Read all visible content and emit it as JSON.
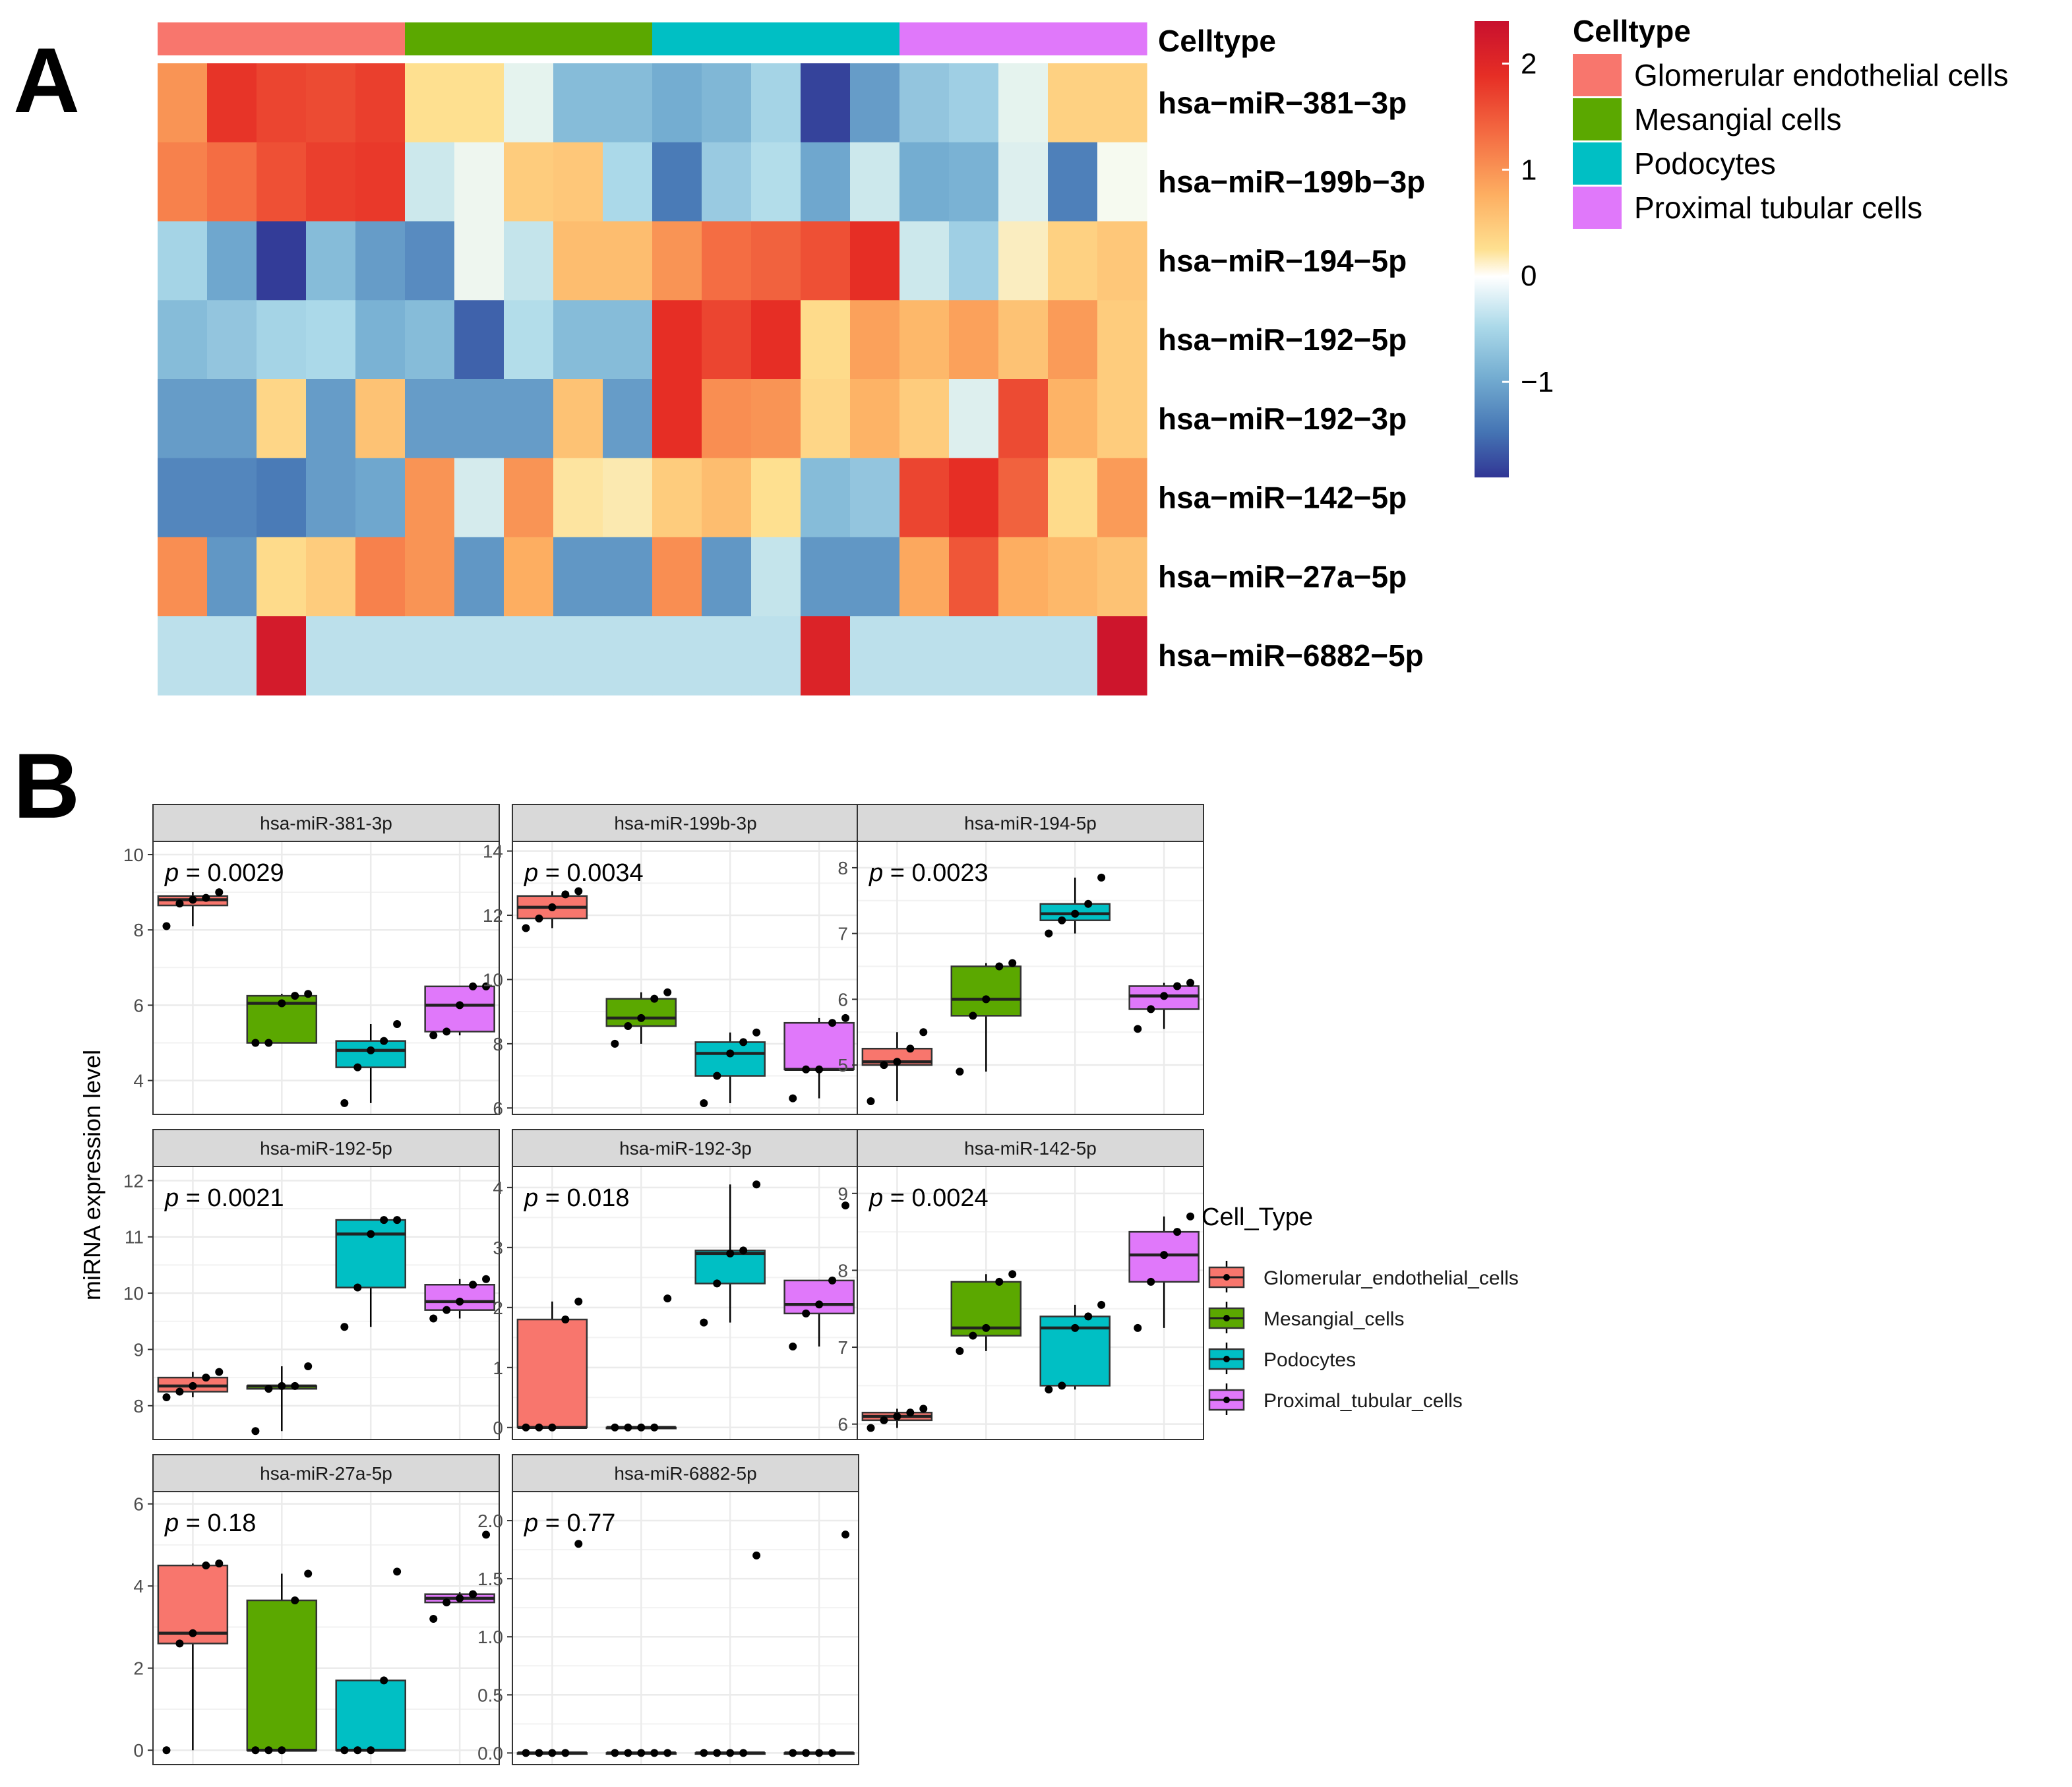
{
  "panel_labels": {
    "a": "A",
    "b": "B"
  },
  "colors": {
    "Glomerular endothelial cells": "#F8766D",
    "Mesangial cells": "#5BA800",
    "Podocytes": "#00BFC4",
    "Proximal tubular cells": "#E078FA"
  },
  "chart_data": [
    {
      "type": "heatmap",
      "annotation_title": "Celltype",
      "annotation": [
        "Glomerular endothelial cells",
        "Glomerular endothelial cells",
        "Glomerular endothelial cells",
        "Glomerular endothelial cells",
        "Glomerular endothelial cells",
        "Mesangial cells",
        "Mesangial cells",
        "Mesangial cells",
        "Mesangial cells",
        "Mesangial cells",
        "Podocytes",
        "Podocytes",
        "Podocytes",
        "Podocytes",
        "Podocytes",
        "Proximal tubular cells",
        "Proximal tubular cells",
        "Proximal tubular cells",
        "Proximal tubular cells",
        "Proximal tubular cells"
      ],
      "legend_title": "Celltype",
      "legend": [
        "Glomerular endothelial cells",
        "Mesangial cells",
        "Podocytes",
        "Proximal tubular cells"
      ],
      "rows": [
        "hsa−miR−381−3p",
        "hsa−miR−199b−3p",
        "hsa−miR−194−5p",
        "hsa−miR−192−5p",
        "hsa−miR−192−3p",
        "hsa−miR−142−5p",
        "hsa−miR−27a−5p",
        "hsa−miR−6882−5p"
      ],
      "values": [
        [
          1.0,
          1.8,
          1.65,
          1.6,
          1.7,
          0.3,
          0.3,
          -0.1,
          -0.75,
          -0.75,
          -0.9,
          -0.8,
          -0.5,
          -1.8,
          -1.05,
          -0.65,
          -0.55,
          -0.1,
          0.45,
          0.45
        ],
        [
          1.15,
          1.3,
          1.55,
          1.7,
          1.75,
          -0.25,
          -0.05,
          0.5,
          0.55,
          -0.45,
          -1.35,
          -0.6,
          -0.4,
          -0.95,
          -0.25,
          -0.9,
          -0.85,
          -0.15,
          -1.3,
          0.0
        ],
        [
          -0.5,
          -0.95,
          -1.85,
          -0.75,
          -1.05,
          -1.2,
          -0.05,
          -0.3,
          0.65,
          0.65,
          1.0,
          1.3,
          1.4,
          1.55,
          1.85,
          -0.25,
          -0.55,
          0.15,
          0.45,
          0.55
        ],
        [
          -0.75,
          -0.65,
          -0.5,
          -0.45,
          -0.85,
          -0.75,
          -1.55,
          -0.4,
          -0.75,
          -0.75,
          1.85,
          1.65,
          1.85,
          0.35,
          0.9,
          0.7,
          0.9,
          0.6,
          0.95,
          0.5
        ],
        [
          -1.05,
          -1.05,
          0.4,
          -1.05,
          0.6,
          -1.05,
          -1.05,
          -1.05,
          0.6,
          -1.05,
          1.85,
          1.05,
          1.0,
          0.4,
          0.75,
          0.5,
          -0.15,
          1.6,
          0.75,
          0.5
        ],
        [
          -1.25,
          -1.25,
          -1.35,
          -1.05,
          -0.95,
          1.0,
          -0.2,
          1.0,
          0.25,
          0.2,
          0.5,
          0.65,
          0.3,
          -0.75,
          -0.65,
          1.65,
          1.85,
          1.4,
          0.35,
          0.95
        ],
        [
          1.05,
          -1.1,
          0.35,
          0.5,
          1.15,
          1.0,
          -1.1,
          0.8,
          -1.1,
          -1.1,
          1.05,
          -1.1,
          -0.3,
          -1.1,
          -1.1,
          0.85,
          1.5,
          0.8,
          0.7,
          0.6
        ],
        [
          -0.35,
          -0.35,
          2.2,
          -0.35,
          -0.35,
          -0.35,
          -0.35,
          -0.35,
          -0.35,
          -0.35,
          -0.35,
          -0.35,
          -0.35,
          2.05,
          -0.35,
          -0.35,
          -0.35,
          -0.35,
          -0.35,
          2.3
        ]
      ],
      "colorbar": {
        "min": -1.9,
        "max": 2.4,
        "ticks": [
          -1,
          0,
          1,
          2
        ],
        "tick_labels": [
          "−1",
          "0",
          "1",
          "2"
        ]
      }
    },
    {
      "type": "boxplot",
      "ylabel": "miRNA expression level",
      "legend_title": "Cell_Type",
      "legend": [
        "Glomerular_endothelial_cells",
        "Mesangial_cells",
        "Podocytes",
        "Proximal_tubular_cells"
      ],
      "p_prefix": "p",
      "facets": [
        {
          "title": "hsa-miR-381-3p",
          "p": "= 0.0029",
          "ylim": [
            3.1,
            10.35
          ],
          "yticks": [
            4,
            6,
            8,
            10
          ],
          "groups": [
            {
              "q1": 8.65,
              "med": 8.8,
              "q3": 8.9,
              "lo": 8.1,
              "hi": 9.0,
              "points": [
                8.1,
                8.7,
                8.8,
                8.85,
                9.0
              ]
            },
            {
              "q1": 5.0,
              "med": 6.05,
              "q3": 6.25,
              "lo": 5.0,
              "hi": 6.3,
              "points": [
                5.0,
                5.0,
                6.05,
                6.25,
                6.3
              ]
            },
            {
              "q1": 4.35,
              "med": 4.8,
              "q3": 5.05,
              "lo": 3.4,
              "hi": 5.5,
              "points": [
                3.4,
                4.35,
                4.8,
                5.05,
                5.5
              ]
            },
            {
              "q1": 5.3,
              "med": 6.0,
              "q3": 6.5,
              "lo": 5.2,
              "hi": 6.5,
              "points": [
                5.2,
                5.3,
                6.0,
                6.5,
                6.5
              ]
            }
          ]
        },
        {
          "title": "hsa-miR-199b-3p",
          "p": "= 0.0034",
          "ylim": [
            5.8,
            14.3
          ],
          "yticks": [
            6,
            8,
            10,
            12,
            14
          ],
          "groups": [
            {
              "q1": 11.9,
              "med": 12.25,
              "q3": 12.6,
              "lo": 11.6,
              "hi": 12.75,
              "points": [
                11.6,
                11.9,
                12.25,
                12.65,
                12.75
              ]
            },
            {
              "q1": 8.55,
              "med": 8.8,
              "q3": 9.4,
              "lo": 8.0,
              "hi": 9.6,
              "points": [
                8.0,
                8.55,
                8.8,
                9.4,
                9.6
              ]
            },
            {
              "q1": 7.0,
              "med": 7.7,
              "q3": 8.05,
              "lo": 6.15,
              "hi": 8.35,
              "points": [
                6.15,
                7.0,
                7.7,
                8.05,
                8.35
              ]
            },
            {
              "q1": 7.2,
              "med": 7.2,
              "q3": 8.65,
              "lo": 6.3,
              "hi": 8.8,
              "points": [
                6.3,
                7.2,
                7.2,
                8.65,
                8.8
              ]
            }
          ]
        },
        {
          "title": "hsa-miR-194-5p",
          "p": "= 0.0023",
          "ylim": [
            4.25,
            8.4
          ],
          "yticks": [
            5,
            6,
            7,
            8
          ],
          "groups": [
            {
              "q1": 5.0,
              "med": 5.05,
              "q3": 5.25,
              "lo": 4.45,
              "hi": 5.5,
              "points": [
                4.45,
                5.0,
                5.05,
                5.25,
                5.5
              ]
            },
            {
              "q1": 5.75,
              "med": 6.0,
              "q3": 6.5,
              "lo": 4.9,
              "hi": 6.55,
              "points": [
                4.9,
                5.75,
                6.0,
                6.5,
                6.55
              ]
            },
            {
              "q1": 7.2,
              "med": 7.3,
              "q3": 7.45,
              "lo": 7.0,
              "hi": 7.85,
              "points": [
                7.0,
                7.2,
                7.3,
                7.45,
                7.85
              ]
            },
            {
              "q1": 5.85,
              "med": 6.05,
              "q3": 6.2,
              "lo": 5.55,
              "hi": 6.25,
              "points": [
                5.55,
                5.85,
                6.05,
                6.2,
                6.25
              ]
            }
          ]
        },
        {
          "title": "hsa-miR-192-5p",
          "p": "= 0.0021",
          "ylim": [
            7.4,
            12.25
          ],
          "yticks": [
            8,
            9,
            10,
            11,
            12
          ],
          "groups": [
            {
              "q1": 8.25,
              "med": 8.35,
              "q3": 8.5,
              "lo": 8.15,
              "hi": 8.6,
              "points": [
                8.15,
                8.25,
                8.35,
                8.5,
                8.6
              ]
            },
            {
              "q1": 8.3,
              "med": 8.35,
              "q3": 8.35,
              "lo": 7.55,
              "hi": 8.7,
              "points": [
                7.55,
                8.3,
                8.35,
                8.35,
                8.7
              ]
            },
            {
              "q1": 10.1,
              "med": 11.05,
              "q3": 11.3,
              "lo": 9.4,
              "hi": 11.3,
              "points": [
                9.4,
                10.1,
                11.05,
                11.3,
                11.3
              ]
            },
            {
              "q1": 9.7,
              "med": 9.85,
              "q3": 10.15,
              "lo": 9.55,
              "hi": 10.25,
              "points": [
                9.55,
                9.7,
                9.85,
                10.15,
                10.25
              ]
            }
          ]
        },
        {
          "title": "hsa-miR-192-3p",
          "p": "= 0.018",
          "ylim": [
            -0.2,
            4.35
          ],
          "yticks": [
            0,
            1,
            2,
            3,
            4
          ],
          "groups": [
            {
              "q1": 0.0,
              "med": 0.0,
              "q3": 1.8,
              "lo": 0.0,
              "hi": 2.1,
              "points": [
                0.0,
                0.0,
                0.0,
                1.8,
                2.1
              ]
            },
            {
              "q1": 0.0,
              "med": 0.0,
              "q3": 0.0,
              "lo": 0.0,
              "hi": 0.0,
              "points": [
                0.0,
                0.0,
                0.0,
                0.0,
                2.15
              ]
            },
            {
              "q1": 2.4,
              "med": 2.9,
              "q3": 2.95,
              "lo": 1.75,
              "hi": 4.05,
              "points": [
                1.75,
                2.4,
                2.9,
                2.95,
                4.05
              ]
            },
            {
              "q1": 1.9,
              "med": 2.05,
              "q3": 2.45,
              "lo": 1.35,
              "hi": 2.45,
              "points": [
                1.35,
                1.9,
                2.05,
                2.45,
                3.7
              ]
            }
          ]
        },
        {
          "title": "hsa-miR-142-5p",
          "p": "= 0.0024",
          "ylim": [
            5.8,
            9.35
          ],
          "yticks": [
            6,
            7,
            8,
            9
          ],
          "groups": [
            {
              "q1": 6.05,
              "med": 6.1,
              "q3": 6.15,
              "lo": 5.95,
              "hi": 6.2,
              "points": [
                5.95,
                6.05,
                6.1,
                6.15,
                6.2
              ]
            },
            {
              "q1": 7.15,
              "med": 7.25,
              "q3": 7.85,
              "lo": 6.95,
              "hi": 7.95,
              "points": [
                6.95,
                7.15,
                7.25,
                7.85,
                7.95
              ]
            },
            {
              "q1": 6.5,
              "med": 7.25,
              "q3": 7.4,
              "lo": 6.45,
              "hi": 7.55,
              "points": [
                6.45,
                6.5,
                7.25,
                7.4,
                7.55
              ]
            },
            {
              "q1": 7.85,
              "med": 8.2,
              "q3": 8.5,
              "lo": 7.25,
              "hi": 8.7,
              "points": [
                7.25,
                7.85,
                8.2,
                8.5,
                8.7
              ]
            }
          ]
        },
        {
          "title": "hsa-miR-27a-5p",
          "p": "= 0.18",
          "ylim": [
            -0.35,
            6.3
          ],
          "yticks": [
            0,
            2,
            4,
            6
          ],
          "groups": [
            {
              "q1": 2.6,
              "med": 2.85,
              "q3": 4.5,
              "lo": 0.0,
              "hi": 4.55,
              "points": [
                0.0,
                2.6,
                2.85,
                4.5,
                4.55
              ]
            },
            {
              "q1": 0.0,
              "med": 0.0,
              "q3": 3.65,
              "lo": 0.0,
              "hi": 4.3,
              "points": [
                0.0,
                0.0,
                0.0,
                3.65,
                4.3
              ]
            },
            {
              "q1": 0.0,
              "med": 0.0,
              "q3": 1.7,
              "lo": 0.0,
              "hi": 1.7,
              "points": [
                0.0,
                0.0,
                0.0,
                1.7,
                4.35
              ]
            },
            {
              "q1": 3.6,
              "med": 3.7,
              "q3": 3.8,
              "lo": 3.6,
              "hi": 3.85,
              "points": [
                3.2,
                3.6,
                3.7,
                3.8,
                5.25
              ]
            }
          ]
        },
        {
          "title": "hsa-miR-6882-5p",
          "p": "= 0.77",
          "ylim": [
            -0.1,
            2.25
          ],
          "yticks": [
            0.0,
            0.5,
            1.0,
            1.5,
            2.0
          ],
          "ytick_labels": [
            "0.0",
            "0.5",
            "1.0",
            "1.5",
            "2.0"
          ],
          "groups": [
            {
              "q1": 0.0,
              "med": 0.0,
              "q3": 0.0,
              "lo": 0.0,
              "hi": 0.0,
              "points": [
                0.0,
                0.0,
                0.0,
                0.0,
                1.8
              ]
            },
            {
              "q1": 0.0,
              "med": 0.0,
              "q3": 0.0,
              "lo": 0.0,
              "hi": 0.0,
              "points": [
                0.0,
                0.0,
                0.0,
                0.0,
                0.0
              ]
            },
            {
              "q1": 0.0,
              "med": 0.0,
              "q3": 0.0,
              "lo": 0.0,
              "hi": 0.0,
              "points": [
                0.0,
                0.0,
                0.0,
                0.0,
                1.7
              ]
            },
            {
              "q1": 0.0,
              "med": 0.0,
              "q3": 0.0,
              "lo": 0.0,
              "hi": 0.0,
              "points": [
                0.0,
                0.0,
                0.0,
                0.0,
                1.88
              ]
            }
          ]
        }
      ]
    }
  ]
}
